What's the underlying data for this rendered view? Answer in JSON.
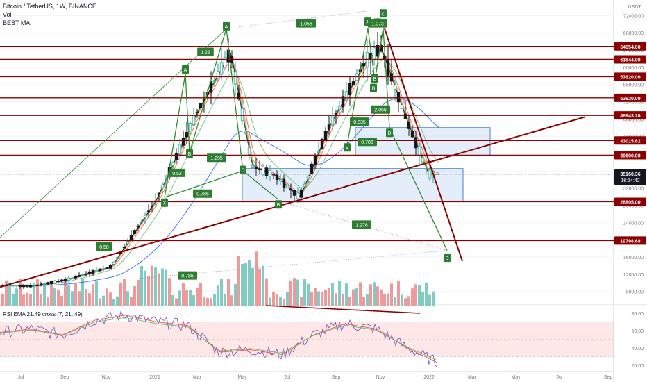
{
  "header": {
    "symbol_line": "Bitcoin / TetherUS, 1W, BINANCE",
    "vol_label": "Vol",
    "ma_label": "BEST MA",
    "rsi_label": "RSI EMA 21.49 cross (7, 21, 49)"
  },
  "colors": {
    "up": "#26a69a",
    "down": "#ef5350",
    "support_resistance": "#8b0000",
    "harmonic": "#2e8b2e",
    "zone_fill": "rgba(179,205,240,0.35)",
    "zone_border": "#4a7fc1",
    "price_tag": "#131722",
    "rsi_band": "rgba(244,67,54,0.12)"
  },
  "price_axis": {
    "currency": "USDT",
    "ticks": [
      "72000.00",
      "68000.00",
      "64000.00",
      "60000.00",
      "56000.00",
      "52000.00",
      "48000.00",
      "44000.00",
      "40000.00",
      "36000.00",
      "32000.00",
      "28000.00",
      "24000.00",
      "20000.00",
      "16000.00",
      "12000.00",
      "8000.00"
    ],
    "levels": [
      {
        "label": "64854.00",
        "value": 64854
      },
      {
        "label": "61844.00",
        "value": 61844
      },
      {
        "label": "57820.00",
        "value": 57820
      },
      {
        "label": "52920.00",
        "value": 52920
      },
      {
        "label": "48843.20",
        "value": 48843.2
      },
      {
        "label": "43015.62",
        "value": 43015.62
      },
      {
        "label": "39600.00",
        "value": 39600
      },
      {
        "label": "28805.00",
        "value": 28805
      },
      {
        "label": "19798.68",
        "value": 19798.68
      }
    ],
    "current_price": "35160.36",
    "countdown": "18:14:42"
  },
  "rsi_axis": {
    "ticks": [
      "80.00",
      "60.00",
      "40.00",
      "20.00"
    ]
  },
  "time_axis": {
    "labels": [
      "Jul",
      "Sep",
      "Nov",
      "2021",
      "Mar",
      "May",
      "Jul",
      "Sep",
      "Nov",
      "2022",
      "Mar",
      "May",
      "Jul",
      "Sep"
    ]
  },
  "pattern_labels": {
    "points": [
      "A",
      "B",
      "X",
      "A",
      "B",
      "D",
      "B",
      "X",
      "A",
      "B",
      "C",
      "D",
      "D",
      "A"
    ],
    "ratios": [
      "1.068",
      "1.22",
      "1.295",
      "0.52",
      "0.786",
      "1.276",
      "0.786",
      "0.786",
      "2.066",
      "0.835",
      "1.073",
      "0.58"
    ]
  },
  "chart_data": {
    "type": "candlestick",
    "interval": "1W",
    "x": [
      "2020-06-15",
      "2020-07-15",
      "2020-09-01",
      "2020-11-01",
      "2021-01-01",
      "2021-03-01",
      "2021-04-15",
      "2021-05-15",
      "2021-06-15",
      "2021-07-20",
      "2021-09-01",
      "2021-10-20",
      "2021-11-10",
      "2021-12-15",
      "2022-01-15"
    ],
    "close": [
      9400,
      9200,
      10800,
      13800,
      29000,
      50000,
      63500,
      37000,
      35000,
      29800,
      47000,
      61500,
      64500,
      48000,
      35160
    ],
    "ylim": [
      6000,
      74000
    ],
    "volume_series": [
      {
        "name": "Vol"
      }
    ],
    "rsi": {
      "values": [
        58,
        62,
        55,
        72,
        78,
        70,
        66,
        35,
        38,
        32,
        55,
        68,
        62,
        40,
        22
      ],
      "ylim": [
        15,
        85
      ]
    },
    "levels": [
      64854,
      61844,
      57820,
      52920,
      48843.2,
      43015.62,
      39600,
      28805,
      19798.68
    ]
  }
}
